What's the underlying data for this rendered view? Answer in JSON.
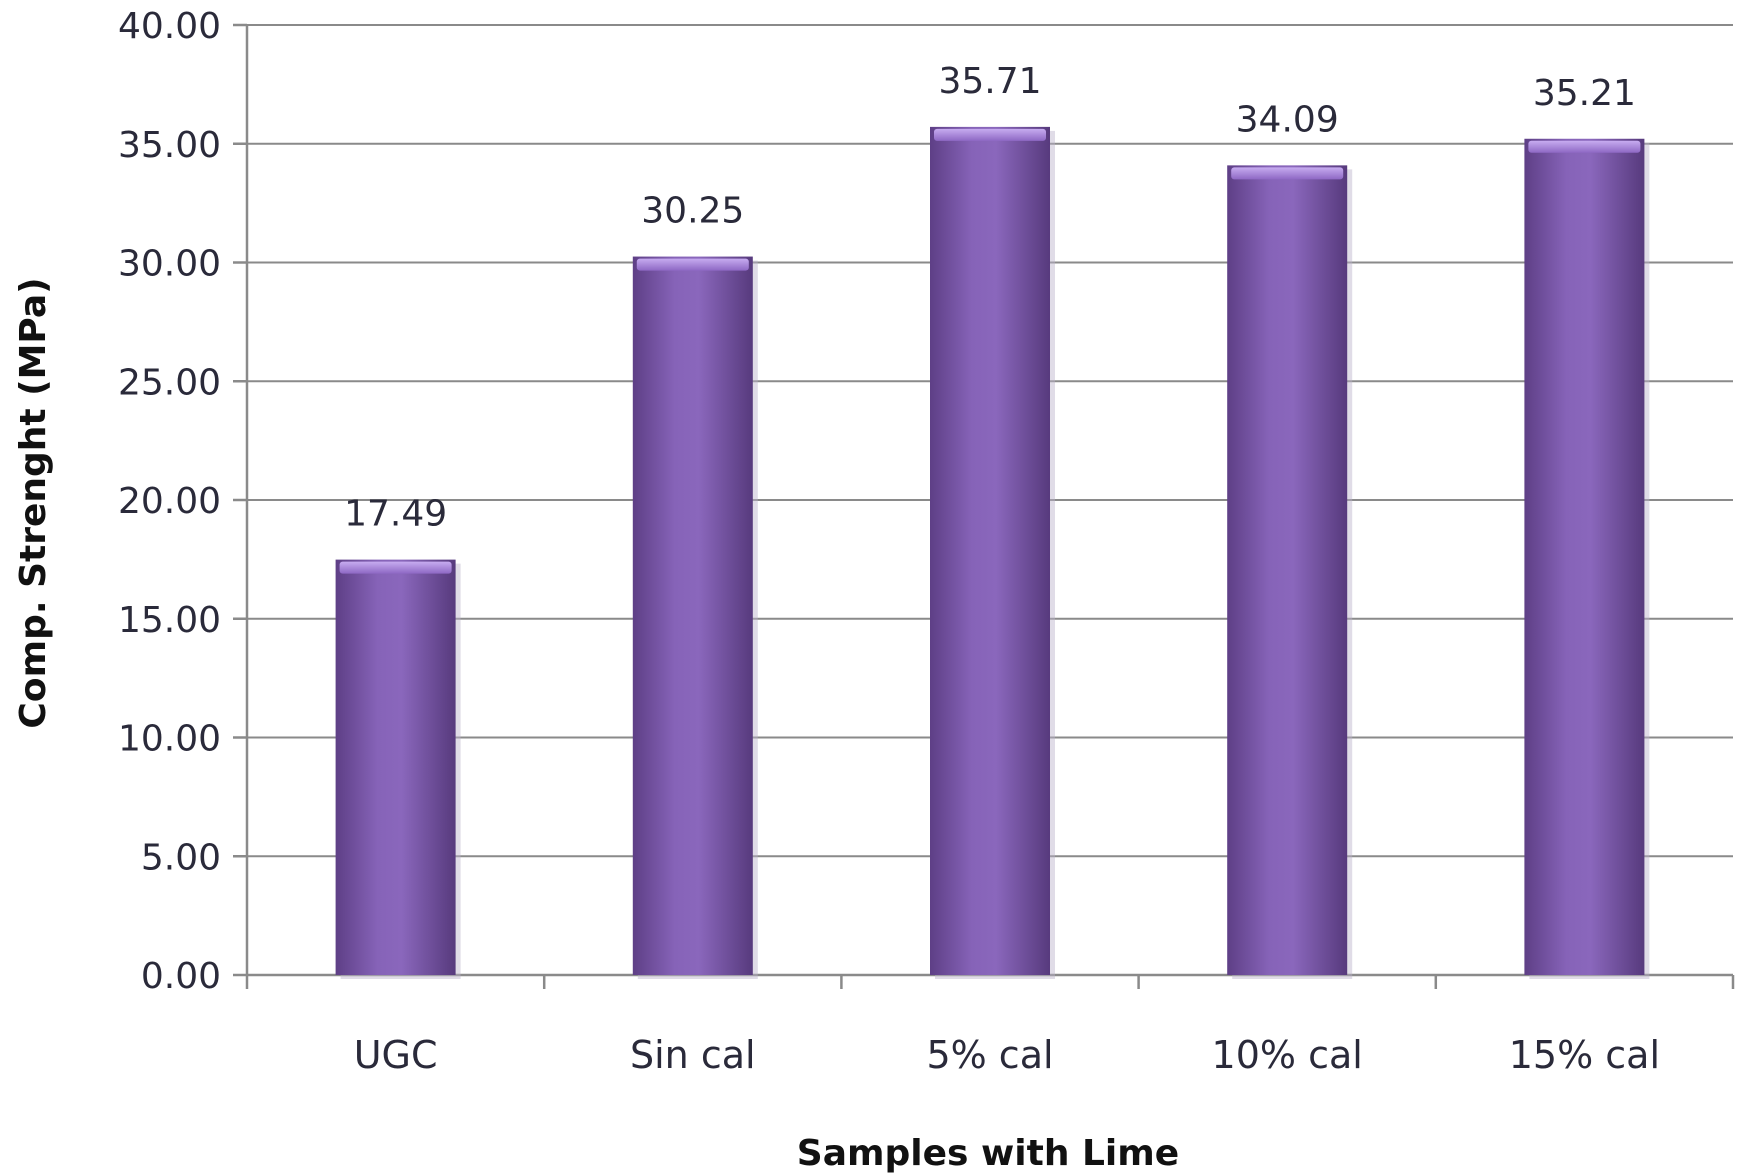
{
  "chart_data": {
    "type": "bar",
    "title": "",
    "xlabel": "Samples with Lime",
    "ylabel": "Comp. Strenght (MPa)",
    "categories": [
      "UGC",
      "Sin cal",
      "5% cal",
      "10% cal",
      "15% cal"
    ],
    "values": [
      17.49,
      30.25,
      35.71,
      34.09,
      35.21
    ],
    "data_labels": [
      "17.49",
      "30.25",
      "35.71",
      "34.09",
      "35.21"
    ],
    "ylim": [
      0,
      40
    ],
    "yticks": [
      0,
      5,
      10,
      15,
      20,
      25,
      30,
      35,
      40
    ],
    "ytick_labels": [
      "0.00",
      "5.00",
      "10.00",
      "15.00",
      "20.00",
      "25.00",
      "30.00",
      "35.00",
      "40.00"
    ],
    "grid": true,
    "legend": "none",
    "bar_color": "#7b56a8"
  }
}
